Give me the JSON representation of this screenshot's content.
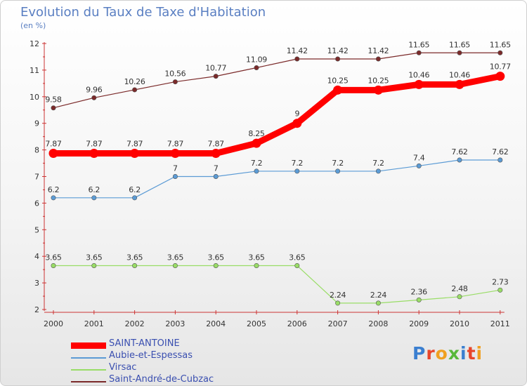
{
  "title": "Evolution du Taux de Taxe d'Habitation",
  "subtitle": "(en %)",
  "chart_data": {
    "type": "line",
    "title": "Evolution du Taux de Taxe d'Habitation",
    "subtitle": "(en %)",
    "xlabel": "",
    "ylabel": "",
    "x": [
      "2000",
      "2001",
      "2002",
      "2003",
      "2004",
      "2005",
      "2006",
      "2007",
      "2008",
      "2009",
      "2010",
      "2011"
    ],
    "ylim": [
      2,
      12
    ],
    "yticks": [
      2,
      3,
      4,
      5,
      6,
      7,
      8,
      9,
      10,
      11,
      12
    ],
    "grid": false,
    "legend_position": "bottom-left",
    "series": [
      {
        "name": "SAINT-ANTOINE",
        "color": "#ff0000",
        "values": [
          7.87,
          7.87,
          7.87,
          7.87,
          7.87,
          8.25,
          9,
          10.25,
          10.25,
          10.46,
          10.46,
          10.77
        ],
        "labels": [
          "7.87",
          "7.87",
          "7.87",
          "7.87",
          "7.87",
          "8.25",
          "9",
          "10.25",
          "10.25",
          "10.46",
          "10.46",
          "10.77"
        ]
      },
      {
        "name": "Aubie-et-Espessas",
        "color": "#5b9bd5",
        "values": [
          6.2,
          6.2,
          6.2,
          7,
          7,
          7.2,
          7.2,
          7.2,
          7.2,
          7.4,
          7.62,
          7.62
        ],
        "labels": [
          "6.2",
          "6.2",
          "6.2",
          "7",
          "7",
          "7.2",
          "7.2",
          "7.2",
          "7.2",
          "7.4",
          "7.62",
          "7.62"
        ]
      },
      {
        "name": "Virsac",
        "color": "#99dd66",
        "values": [
          3.65,
          3.65,
          3.65,
          3.65,
          3.65,
          3.65,
          3.65,
          2.24,
          2.24,
          2.36,
          2.48,
          2.73
        ],
        "labels": [
          "3.65",
          "3.65",
          "3.65",
          "3.65",
          "3.65",
          "3.65",
          "3.65",
          "2.24",
          "2.24",
          "2.36",
          "2.48",
          "2.73"
        ]
      },
      {
        "name": "Saint-André-de-Cubzac",
        "color": "#7b2a2a",
        "values": [
          9.58,
          9.96,
          10.26,
          10.56,
          10.77,
          11.09,
          11.42,
          11.42,
          11.42,
          11.65,
          11.65,
          11.65
        ],
        "labels": [
          "9.58",
          "9.96",
          "10.26",
          "10.56",
          "10.77",
          "11.09",
          "11.42",
          "11.42",
          "11.42",
          "11.65",
          "11.65",
          "11.65"
        ]
      }
    ]
  },
  "logo": {
    "letters": [
      "P",
      "r",
      "o",
      "x",
      "i",
      "t",
      "i"
    ],
    "colors": [
      "#3b7fd0",
      "#e8462b",
      "#f0a020",
      "#58b83a",
      "#3b7fd0",
      "#e8462b",
      "#f0a020"
    ]
  }
}
